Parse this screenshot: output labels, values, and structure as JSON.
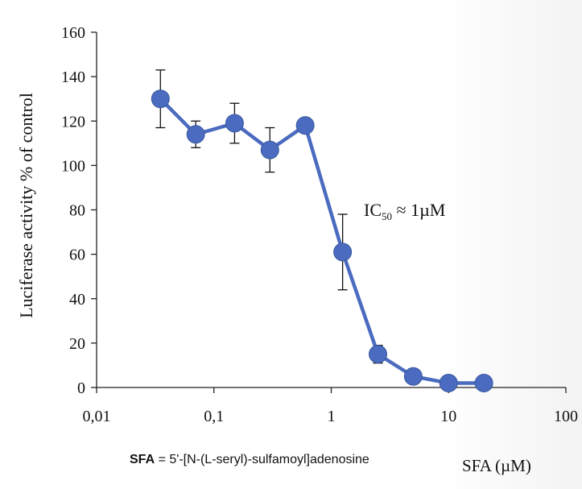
{
  "chart_data": {
    "type": "line",
    "x_scale": "log",
    "xlim": [
      0.01,
      100
    ],
    "ylim": [
      0,
      160
    ],
    "x_ticks": [
      "0,01",
      "0,1",
      "1",
      "10",
      "100"
    ],
    "y_ticks": [
      "0",
      "20",
      "40",
      "60",
      "80",
      "100",
      "120",
      "140",
      "160"
    ],
    "ylabel": "Luciferase activity % of control",
    "xlabel": "SFA (µM)",
    "annotation": {
      "main": "IC",
      "sub": "50",
      "rest": " ≈ 1µM"
    },
    "caption": {
      "bold": "SFA",
      "rest": " = 5'-[N-(L-seryl)-sulfamoyl]adenosine"
    },
    "grid": false,
    "series": [
      {
        "color": "#4a6bbf",
        "points": [
          {
            "x": 0.035,
            "y": 130,
            "err": 13
          },
          {
            "x": 0.07,
            "y": 114,
            "err": 6
          },
          {
            "x": 0.15,
            "y": 119,
            "err": 9
          },
          {
            "x": 0.3,
            "y": 107,
            "err": 10
          },
          {
            "x": 0.6,
            "y": 118,
            "err": 0
          },
          {
            "x": 1.25,
            "y": 61,
            "err": 17
          },
          {
            "x": 2.5,
            "y": 15,
            "err": 4
          },
          {
            "x": 5,
            "y": 5,
            "err": 0
          },
          {
            "x": 10,
            "y": 2,
            "err": 0
          },
          {
            "x": 20,
            "y": 2,
            "err": 0
          }
        ]
      }
    ]
  }
}
